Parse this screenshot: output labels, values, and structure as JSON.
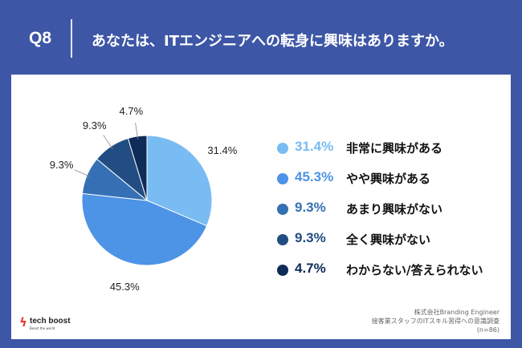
{
  "header": {
    "number": "Q8",
    "title": "あなたは、ITエンジニアへの転身に興味はありますか。"
  },
  "chart_data": {
    "type": "pie",
    "title": "あなたは、ITエンジニアへの転身に興味はありますか。",
    "slices": [
      {
        "label": "非常に興味がある",
        "value": 31.4,
        "display": "31.4%",
        "color": "#79bbf3"
      },
      {
        "label": "やや興味がある",
        "value": 45.3,
        "display": "45.3%",
        "color": "#4d93e6"
      },
      {
        "label": "あまり興味がない",
        "value": 9.3,
        "display": "9.3%",
        "color": "#3570b4"
      },
      {
        "label": "全く興味がない",
        "value": 9.3,
        "display": "9.3%",
        "color": "#224d83"
      },
      {
        "label": "わからない/答えられない",
        "value": 4.7,
        "display": "4.7%",
        "color": "#0f2b58"
      }
    ]
  },
  "logo": {
    "name": "tech boost",
    "tagline": "Boost the world"
  },
  "source": {
    "line1": "株式会社Branding Engineer",
    "line2": "接客業スタッフのITスキル習得への意識調査",
    "line3": "(n=86)"
  }
}
